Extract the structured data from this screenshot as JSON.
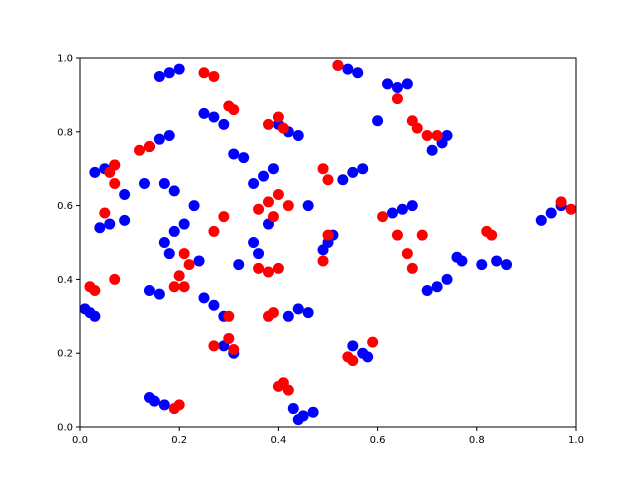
{
  "chart_data": {
    "type": "scatter",
    "xlim": [
      0,
      1
    ],
    "ylim": [
      0,
      1
    ],
    "xticks": [
      {
        "value": 0,
        "label": "0.0"
      },
      0.2,
      0.4,
      0.6,
      0.8,
      {
        "value": 1,
        "label": "1.0"
      }
    ],
    "yticks": [
      {
        "value": 0,
        "label": "0.0"
      },
      0.2,
      0.4,
      0.6,
      0.8,
      {
        "value": 1,
        "label": "1.0"
      }
    ],
    "series": [
      {
        "color": "#0000ff",
        "x": [
          0.18,
          0.16,
          0.2,
          0.27,
          0.25,
          0.29,
          0.31,
          0.33,
          0.42,
          0.4,
          0.44,
          0.16,
          0.14,
          0.18,
          0.05,
          0.03,
          0.07,
          0.17,
          0.19,
          0.13,
          0.06,
          0.04,
          0.09,
          0.19,
          0.17,
          0.21,
          0.18,
          0.37,
          0.35,
          0.39,
          0.38,
          0.35,
          0.36,
          0.55,
          0.53,
          0.57,
          0.5,
          0.49,
          0.51,
          0.54,
          0.56,
          0.52,
          0.64,
          0.66,
          0.62,
          0.73,
          0.71,
          0.74,
          0.65,
          0.63,
          0.67,
          0.72,
          0.7,
          0.74,
          0.76,
          0.84,
          0.86,
          0.81,
          0.95,
          0.93,
          0.97,
          0.02,
          0.03,
          0.01,
          0.16,
          0.14,
          0.27,
          0.29,
          0.25,
          0.31,
          0.29,
          0.44,
          0.42,
          0.46,
          0.57,
          0.55,
          0.58,
          0.15,
          0.14,
          0.17,
          0.45,
          0.44,
          0.47,
          0.43,
          0.23,
          0.09,
          0.24,
          0.32,
          0.46,
          0.6,
          0.77
        ],
        "y": [
          0.96,
          0.95,
          0.97,
          0.84,
          0.85,
          0.82,
          0.74,
          0.73,
          0.8,
          0.82,
          0.79,
          0.78,
          0.76,
          0.79,
          0.7,
          0.69,
          0.71,
          0.66,
          0.64,
          0.66,
          0.55,
          0.54,
          0.56,
          0.53,
          0.5,
          0.55,
          0.47,
          0.68,
          0.66,
          0.7,
          0.55,
          0.5,
          0.47,
          0.69,
          0.67,
          0.7,
          0.5,
          0.48,
          0.52,
          0.97,
          0.96,
          0.98,
          0.92,
          0.93,
          0.93,
          0.77,
          0.75,
          0.79,
          0.59,
          0.58,
          0.6,
          0.38,
          0.37,
          0.4,
          0.46,
          0.45,
          0.44,
          0.44,
          0.58,
          0.56,
          0.6,
          0.31,
          0.3,
          0.32,
          0.36,
          0.37,
          0.33,
          0.3,
          0.35,
          0.2,
          0.22,
          0.32,
          0.3,
          0.31,
          0.2,
          0.22,
          0.19,
          0.07,
          0.08,
          0.06,
          0.03,
          0.02,
          0.04,
          0.05,
          0.6,
          0.63,
          0.45,
          0.44,
          0.6,
          0.83,
          0.45
        ]
      },
      {
        "color": "#ff0000",
        "x": [
          0.25,
          0.27,
          0.3,
          0.31,
          0.4,
          0.38,
          0.41,
          0.12,
          0.14,
          0.07,
          0.06,
          0.07,
          0.38,
          0.4,
          0.36,
          0.39,
          0.42,
          0.29,
          0.27,
          0.49,
          0.5,
          0.52,
          0.64,
          0.67,
          0.68,
          0.7,
          0.72,
          0.64,
          0.66,
          0.67,
          0.69,
          0.61,
          0.82,
          0.83,
          0.97,
          0.99,
          0.21,
          0.22,
          0.2,
          0.21,
          0.19,
          0.02,
          0.03,
          0.07,
          0.05,
          0.38,
          0.39,
          0.27,
          0.3,
          0.3,
          0.31,
          0.4,
          0.42,
          0.41,
          0.54,
          0.55,
          0.59,
          0.2,
          0.19,
          0.38,
          0.36,
          0.4,
          0.49,
          0.5
        ],
        "y": [
          0.96,
          0.95,
          0.87,
          0.86,
          0.84,
          0.82,
          0.81,
          0.75,
          0.76,
          0.71,
          0.69,
          0.66,
          0.61,
          0.63,
          0.59,
          0.57,
          0.6,
          0.57,
          0.53,
          0.7,
          0.67,
          0.98,
          0.89,
          0.83,
          0.81,
          0.79,
          0.79,
          0.52,
          0.47,
          0.43,
          0.52,
          0.57,
          0.53,
          0.52,
          0.61,
          0.59,
          0.47,
          0.44,
          0.41,
          0.38,
          0.38,
          0.38,
          0.37,
          0.4,
          0.58,
          0.3,
          0.31,
          0.22,
          0.24,
          0.3,
          0.21,
          0.11,
          0.1,
          0.12,
          0.19,
          0.18,
          0.23,
          0.06,
          0.05,
          0.42,
          0.43,
          0.43,
          0.45,
          0.52
        ]
      }
    ]
  }
}
